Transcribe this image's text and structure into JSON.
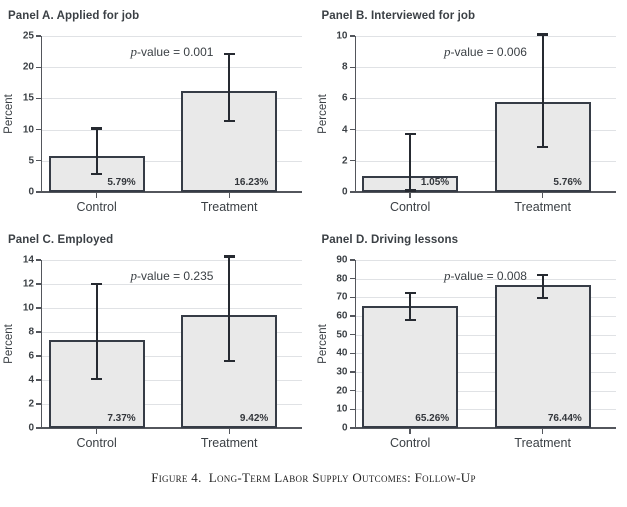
{
  "figure": {
    "caption": "Figure 4.  Long-Term Labor Supply Outcomes: Follow-Up"
  },
  "colors": {
    "bar_fill": "#e9e9e9",
    "bar_border": "#363c46",
    "error_bar": "#262a31",
    "gridline": "#e0e2e5",
    "axis": "#53565c",
    "text": "#3b4045",
    "caption_text": "#1f1f1f"
  },
  "chart_data": [
    {
      "type": "bar",
      "title": "Panel A. Applied for job",
      "ylabel": "Percent",
      "categories": [
        "Control",
        "Treatment"
      ],
      "values": [
        5.79,
        16.23
      ],
      "value_labels": [
        "5.79%",
        "16.23%"
      ],
      "error_low": [
        2.9,
        11.4
      ],
      "error_high": [
        10.2,
        22.1
      ],
      "annotation": "p-value = 0.001",
      "ylim": [
        0,
        25
      ],
      "yticks": [
        0,
        5,
        10,
        15,
        20,
        25
      ],
      "grid": true,
      "legend": "none"
    },
    {
      "type": "bar",
      "title": "Panel B. Interviewed for job",
      "ylabel": "Percent",
      "categories": [
        "Control",
        "Treatment"
      ],
      "values": [
        1.05,
        5.76
      ],
      "value_labels": [
        "1.05%",
        "5.76%"
      ],
      "error_low": [
        0.1,
        2.9
      ],
      "error_high": [
        3.7,
        10.1
      ],
      "annotation": "p-value = 0.006",
      "ylim": [
        0,
        10
      ],
      "yticks": [
        0,
        2,
        4,
        6,
        8,
        10
      ],
      "grid": true,
      "legend": "none"
    },
    {
      "type": "bar",
      "title": "Panel C. Employed",
      "ylabel": "Percent",
      "categories": [
        "Control",
        "Treatment"
      ],
      "values": [
        7.37,
        9.42
      ],
      "value_labels": [
        "7.37%",
        "9.42%"
      ],
      "error_low": [
        4.1,
        5.6
      ],
      "error_high": [
        12.0,
        14.3
      ],
      "annotation": "p-value = 0.235",
      "ylim": [
        0,
        14
      ],
      "yticks": [
        0,
        2,
        4,
        6,
        8,
        10,
        12,
        14
      ],
      "grid": true,
      "legend": "none"
    },
    {
      "type": "bar",
      "title": "Panel D. Driving lessons",
      "ylabel": "Percent",
      "categories": [
        "Control",
        "Treatment"
      ],
      "values": [
        65.26,
        76.44
      ],
      "value_labels": [
        "65.26%",
        "76.44%"
      ],
      "error_low": [
        58.0,
        69.5
      ],
      "error_high": [
        72.2,
        81.8
      ],
      "annotation": "p-value = 0.008",
      "ylim": [
        0,
        90
      ],
      "yticks": [
        0,
        10,
        20,
        30,
        40,
        50,
        60,
        70,
        80,
        90
      ],
      "grid": true,
      "legend": "none"
    }
  ]
}
